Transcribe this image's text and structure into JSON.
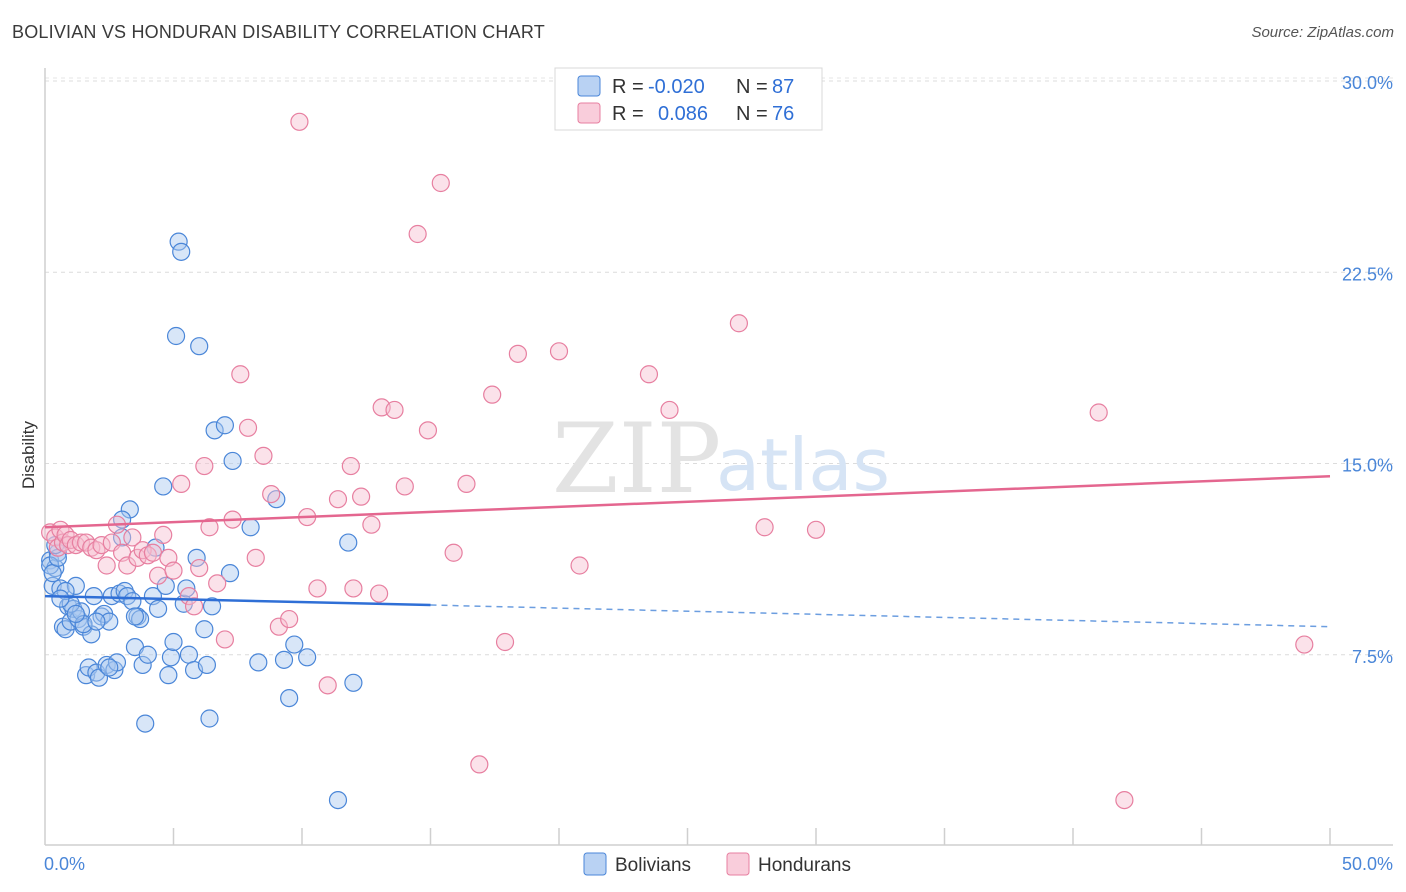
{
  "title": "BOLIVIAN VS HONDURAN DISABILITY CORRELATION CHART",
  "source": "Source: ZipAtlas.com",
  "watermark": {
    "zip": "ZIP",
    "atlas": "atlas"
  },
  "colors": {
    "blue": "#4a86d8",
    "pink": "#e77fa0",
    "blue_fill": "#a9c8f0",
    "pink_fill": "#f7bfd1"
  },
  "legend": {
    "r_label": "R =",
    "n_label": "N =",
    "rows": [
      {
        "r": "-0.020",
        "n": "87"
      },
      {
        "r": "0.086",
        "n": "76"
      }
    ]
  },
  "bottom_legend": [
    "Bolivians",
    "Hondurans"
  ],
  "chart_data": {
    "type": "scatter",
    "title": "BOLIVIAN VS HONDURAN DISABILITY CORRELATION CHART",
    "xlabel": "",
    "ylabel": "Disability",
    "xlim": [
      0,
      50
    ],
    "ylim": [
      0,
      31
    ],
    "x_tick_labels": [
      "0.0%",
      "50.0%"
    ],
    "y_ticks": [
      7.5,
      15.0,
      22.5,
      30.0
    ],
    "y_tick_labels": [
      "7.5%",
      "15.0%",
      "22.5%",
      "30.0%"
    ],
    "grid": true,
    "legend_position": "top-center",
    "series": [
      {
        "name": "Bolivians",
        "color": "#4a86d8",
        "trend": {
          "x": [
            0,
            15
          ],
          "y": [
            9.8,
            9.45
          ],
          "dashed_extension": [
            15,
            50,
            8.6
          ]
        },
        "points": [
          [
            0.2,
            11.2
          ],
          [
            0.3,
            10.2
          ],
          [
            0.4,
            10.9
          ],
          [
            0.5,
            11.5
          ],
          [
            0.6,
            10.1
          ],
          [
            0.7,
            8.6
          ],
          [
            0.8,
            8.5
          ],
          [
            0.9,
            9.4
          ],
          [
            1.0,
            8.8
          ],
          [
            1.1,
            9.3
          ],
          [
            1.2,
            10.2
          ],
          [
            1.3,
            8.9
          ],
          [
            1.4,
            9.2
          ],
          [
            1.5,
            8.6
          ],
          [
            1.6,
            6.7
          ],
          [
            1.7,
            7.0
          ],
          [
            1.8,
            8.3
          ],
          [
            1.9,
            9.8
          ],
          [
            2.0,
            6.8
          ],
          [
            2.1,
            6.6
          ],
          [
            2.2,
            9.0
          ],
          [
            2.3,
            9.1
          ],
          [
            2.4,
            7.1
          ],
          [
            2.5,
            8.8
          ],
          [
            2.6,
            9.8
          ],
          [
            2.7,
            6.9
          ],
          [
            2.8,
            7.2
          ],
          [
            2.9,
            9.9
          ],
          [
            3.0,
            12.1
          ],
          [
            3.1,
            10.0
          ],
          [
            3.2,
            9.8
          ],
          [
            3.3,
            13.2
          ],
          [
            3.4,
            9.6
          ],
          [
            3.5,
            7.8
          ],
          [
            3.6,
            9.0
          ],
          [
            3.7,
            8.9
          ],
          [
            3.8,
            7.1
          ],
          [
            3.9,
            4.8
          ],
          [
            4.0,
            7.5
          ],
          [
            4.2,
            9.8
          ],
          [
            4.3,
            11.7
          ],
          [
            4.4,
            9.3
          ],
          [
            4.6,
            14.1
          ],
          [
            4.7,
            10.2
          ],
          [
            4.8,
            6.7
          ],
          [
            4.9,
            7.4
          ],
          [
            5.0,
            8.0
          ],
          [
            5.1,
            20.0
          ],
          [
            5.2,
            23.7
          ],
          [
            5.3,
            23.3
          ],
          [
            5.4,
            9.5
          ],
          [
            5.5,
            10.1
          ],
          [
            5.6,
            7.5
          ],
          [
            5.8,
            6.9
          ],
          [
            5.9,
            11.3
          ],
          [
            6.0,
            19.6
          ],
          [
            6.2,
            8.5
          ],
          [
            6.3,
            7.1
          ],
          [
            6.4,
            5.0
          ],
          [
            6.5,
            9.4
          ],
          [
            6.6,
            16.3
          ],
          [
            7.0,
            16.5
          ],
          [
            7.2,
            10.7
          ],
          [
            7.3,
            15.1
          ],
          [
            8.0,
            12.5
          ],
          [
            8.3,
            7.2
          ],
          [
            9.0,
            13.6
          ],
          [
            9.3,
            7.3
          ],
          [
            9.5,
            5.8
          ],
          [
            9.7,
            7.9
          ],
          [
            10.2,
            7.4
          ],
          [
            11.4,
            1.8
          ],
          [
            11.8,
            11.9
          ],
          [
            12.0,
            6.4
          ],
          [
            0.2,
            11.0
          ],
          [
            0.3,
            10.7
          ],
          [
            0.5,
            11.3
          ],
          [
            1.0,
            9.5
          ],
          [
            1.5,
            8.7
          ],
          [
            2.0,
            8.8
          ],
          [
            2.5,
            7.0
          ],
          [
            3.0,
            12.8
          ],
          [
            3.5,
            9.0
          ],
          [
            1.2,
            9.1
          ],
          [
            0.8,
            10.0
          ],
          [
            0.6,
            9.7
          ],
          [
            0.4,
            11.8
          ]
        ]
      },
      {
        "name": "Hondurans",
        "color": "#e77fa0",
        "trend": {
          "x": [
            0,
            50
          ],
          "y": [
            12.5,
            14.5
          ]
        },
        "points": [
          [
            0.2,
            12.3
          ],
          [
            0.4,
            12.1
          ],
          [
            0.5,
            11.7
          ],
          [
            0.6,
            12.4
          ],
          [
            0.7,
            11.9
          ],
          [
            0.8,
            12.2
          ],
          [
            0.9,
            11.8
          ],
          [
            1.0,
            12.0
          ],
          [
            1.2,
            11.8
          ],
          [
            1.4,
            11.9
          ],
          [
            1.6,
            11.9
          ],
          [
            1.8,
            11.7
          ],
          [
            2.0,
            11.6
          ],
          [
            2.2,
            11.8
          ],
          [
            2.4,
            11.0
          ],
          [
            2.6,
            11.9
          ],
          [
            2.8,
            12.6
          ],
          [
            3.0,
            11.5
          ],
          [
            3.2,
            11.0
          ],
          [
            3.4,
            12.1
          ],
          [
            3.6,
            11.3
          ],
          [
            3.8,
            11.6
          ],
          [
            4.0,
            11.4
          ],
          [
            4.2,
            11.5
          ],
          [
            4.4,
            10.6
          ],
          [
            4.6,
            12.2
          ],
          [
            4.8,
            11.3
          ],
          [
            5.0,
            10.8
          ],
          [
            5.3,
            14.2
          ],
          [
            5.6,
            9.8
          ],
          [
            5.8,
            9.4
          ],
          [
            6.0,
            10.9
          ],
          [
            6.2,
            14.9
          ],
          [
            6.4,
            12.5
          ],
          [
            6.7,
            10.3
          ],
          [
            7.0,
            8.1
          ],
          [
            7.3,
            12.8
          ],
          [
            7.6,
            18.5
          ],
          [
            7.9,
            16.4
          ],
          [
            8.2,
            11.3
          ],
          [
            8.5,
            15.3
          ],
          [
            8.8,
            13.8
          ],
          [
            9.1,
            8.6
          ],
          [
            9.5,
            8.9
          ],
          [
            9.9,
            28.4
          ],
          [
            10.2,
            12.9
          ],
          [
            10.6,
            10.1
          ],
          [
            11.0,
            6.3
          ],
          [
            11.4,
            13.6
          ],
          [
            11.9,
            14.9
          ],
          [
            12.3,
            13.7
          ],
          [
            12.7,
            12.6
          ],
          [
            13.1,
            17.2
          ],
          [
            13.6,
            17.1
          ],
          [
            14.0,
            14.1
          ],
          [
            14.5,
            24.0
          ],
          [
            14.9,
            16.3
          ],
          [
            15.4,
            26.0
          ],
          [
            15.9,
            11.5
          ],
          [
            16.4,
            14.2
          ],
          [
            16.9,
            3.2
          ],
          [
            17.4,
            17.7
          ],
          [
            17.9,
            8.0
          ],
          [
            18.4,
            19.3
          ],
          [
            20.0,
            19.4
          ],
          [
            20.8,
            11.0
          ],
          [
            23.5,
            18.5
          ],
          [
            24.3,
            17.1
          ],
          [
            27.0,
            20.5
          ],
          [
            28.0,
            12.5
          ],
          [
            30.0,
            12.4
          ],
          [
            41.0,
            17.0
          ],
          [
            42.0,
            1.8
          ],
          [
            49.0,
            7.9
          ],
          [
            13.0,
            9.9
          ],
          [
            12.0,
            10.1
          ]
        ]
      }
    ]
  }
}
